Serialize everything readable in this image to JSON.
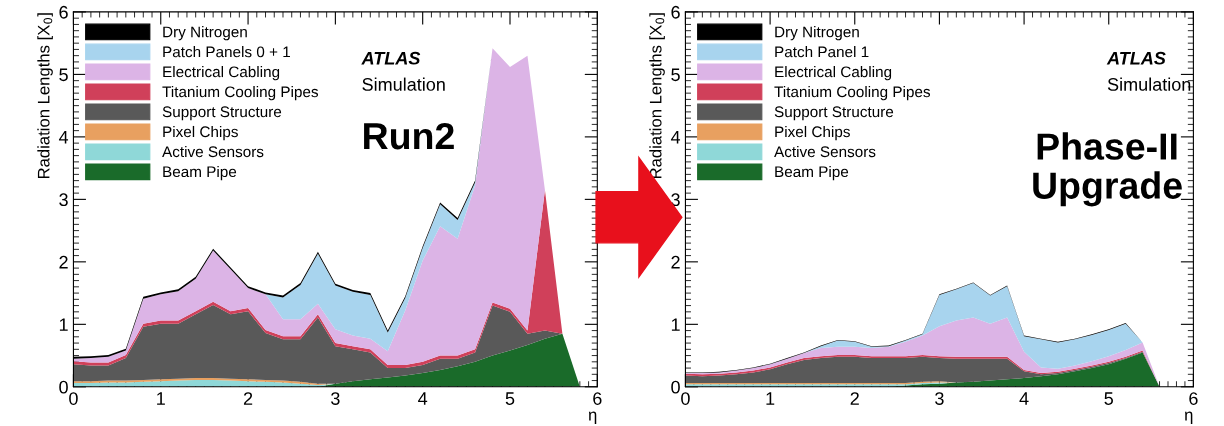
{
  "chart_data": [
    {
      "type": "area",
      "stacked": true,
      "xlabel": "η",
      "ylabel": "Radiation Lengths [X$_{0}$]",
      "xlim": [
        0,
        6
      ],
      "ylim": [
        0,
        6
      ],
      "xticks": [
        0,
        1,
        2,
        3,
        4,
        5,
        6
      ],
      "yticks": [
        0,
        1,
        2,
        3,
        4,
        5,
        6
      ],
      "legend": "top left",
      "grid": false,
      "annotations": [
        "ATLAS",
        "Simulation",
        "Run2"
      ],
      "x": [
        0,
        0.2,
        0.4,
        0.6,
        0.8,
        1.0,
        1.2,
        1.4,
        1.6,
        1.8,
        2.0,
        2.2,
        2.4,
        2.6,
        2.8,
        3.0,
        3.2,
        3.4,
        3.6,
        3.8,
        4.0,
        4.2,
        4.4,
        4.6,
        4.8,
        5.0,
        5.2,
        5.4,
        5.6,
        5.8
      ],
      "series": [
        {
          "name": "Beam Pipe",
          "color": "#1a6b2a",
          "values": [
            null,
            null,
            null,
            null,
            null,
            null,
            null,
            null,
            null,
            null,
            null,
            null,
            null,
            null,
            0,
            0.05,
            0.09,
            0.12,
            0.15,
            0.18,
            0.22,
            0.27,
            0.33,
            0.4,
            0.5,
            0.58,
            0.67,
            0.77,
            0.85,
            0
          ]
        },
        {
          "name": "Active Sensors",
          "color": "#8fd8d8",
          "values": [
            0.06,
            0.06,
            0.07,
            0.07,
            0.08,
            0.09,
            0.1,
            0.11,
            0.11,
            0.1,
            0.09,
            0.08,
            0.07,
            0.05,
            0.03,
            0,
            null,
            null,
            null,
            null,
            null,
            null,
            null,
            null,
            null,
            null,
            null,
            null,
            null,
            null
          ]
        },
        {
          "name": "Pixel Chips",
          "color": "#e8a060",
          "values": [
            0.03,
            0.03,
            0.03,
            0.03,
            0.03,
            0.03,
            0.03,
            0.03,
            0.03,
            0.03,
            0.03,
            0.03,
            0.03,
            0.03,
            0.02,
            0,
            null,
            null,
            null,
            null,
            null,
            null,
            null,
            null,
            null,
            null,
            null,
            null,
            null,
            null
          ]
        },
        {
          "name": "Support Structure",
          "color": "#595959",
          "values": [
            0.27,
            0.25,
            0.24,
            0.36,
            0.85,
            0.89,
            0.88,
            1.02,
            1.17,
            1.03,
            1.09,
            0.75,
            0.66,
            0.68,
            1.06,
            0.6,
            0.51,
            0.43,
            0.15,
            0.12,
            0.13,
            0.18,
            0.12,
            0.15,
            0.8,
            0.62,
            0.18,
            0.13,
            0,
            null
          ]
        },
        {
          "name": "Titanium Cooling Pipes",
          "color": "#d0405a",
          "values": [
            0.05,
            0.05,
            0.05,
            0.05,
            0.05,
            0.05,
            0.05,
            0.05,
            0.05,
            0.05,
            0.05,
            0.05,
            0.05,
            0.05,
            0.05,
            0.05,
            0.05,
            0.05,
            0.05,
            0.05,
            0.05,
            0.05,
            0.05,
            0.05,
            0.05,
            0.05,
            0.05,
            2.25,
            0,
            null
          ]
        },
        {
          "name": "Electrical Cabling",
          "color": "#dcb4e6",
          "values": [
            0.04,
            0.07,
            0.09,
            0.07,
            0.4,
            0.42,
            0.47,
            0.52,
            0.82,
            0.67,
            0.32,
            0.57,
            0.27,
            0.27,
            0.17,
            0.22,
            0.17,
            0.17,
            0.22,
            0.87,
            1.62,
            2.07,
            1.87,
            2.62,
            4.07,
            3.87,
            4.4,
            0,
            null,
            null
          ]
        },
        {
          "name": "Patch Panels 0 + 1",
          "color": "#a8d4ee",
          "values": [
            null,
            null,
            null,
            null,
            null,
            null,
            null,
            null,
            null,
            null,
            null,
            0,
            0.35,
            0.55,
            0.8,
            0.7,
            0.7,
            0.7,
            0.3,
            0.2,
            0.2,
            0.35,
            0.3,
            0.05,
            0,
            null,
            null,
            null,
            null,
            null
          ]
        },
        {
          "name": "Dry Nitrogen",
          "color": "#000000",
          "values": [
            0.03,
            0.03,
            0.03,
            0.03,
            0.03,
            0.03,
            0.03,
            0.03,
            0.03,
            0.03,
            0.03,
            0.03,
            0.03,
            0.03,
            0.03,
            0.03,
            0.03,
            0.03,
            0.03,
            0.03,
            0.03,
            0.03,
            0.03,
            0.03,
            0,
            null,
            null,
            null,
            null,
            null
          ]
        }
      ]
    },
    {
      "type": "area",
      "stacked": true,
      "xlabel": "η",
      "ylabel": "Radiation Lengths [X$_{0}$]",
      "xlim": [
        0,
        6
      ],
      "ylim": [
        0,
        6
      ],
      "xticks": [
        0,
        1,
        2,
        3,
        4,
        5,
        6
      ],
      "yticks": [
        0,
        1,
        2,
        3,
        4,
        5,
        6
      ],
      "legend": "top left",
      "grid": false,
      "annotations": [
        "ATLAS",
        "Simulation",
        "Phase-II\nUpgrade"
      ],
      "x": [
        0,
        0.2,
        0.4,
        0.6,
        0.8,
        1.0,
        1.2,
        1.4,
        1.6,
        1.8,
        2.0,
        2.2,
        2.4,
        2.6,
        2.8,
        3.0,
        3.2,
        3.4,
        3.6,
        3.8,
        4.0,
        4.2,
        4.4,
        4.6,
        4.8,
        5.0,
        5.2,
        5.4,
        5.6
      ],
      "series": [
        {
          "name": "Beam Pipe",
          "color": "#1a6b2a",
          "values": [
            null,
            null,
            null,
            null,
            null,
            null,
            null,
            null,
            null,
            null,
            null,
            null,
            0,
            0.02,
            0.04,
            0.05,
            0.07,
            0.08,
            0.1,
            0.12,
            0.14,
            0.17,
            0.2,
            0.25,
            0.3,
            0.36,
            0.45,
            0.55,
            0
          ]
        },
        {
          "name": "Active Sensors",
          "color": "#8fd8d8",
          "values": [
            0.04,
            0.04,
            0.04,
            0.04,
            0.04,
            0.04,
            0.04,
            0.04,
            0.04,
            0.04,
            0.04,
            0.04,
            0.04,
            0.02,
            0.02,
            0.02,
            0,
            null,
            null,
            null,
            null,
            null,
            null,
            null,
            null,
            null,
            null,
            null,
            null
          ]
        },
        {
          "name": "Pixel Chips",
          "color": "#e8a060",
          "values": [
            0.02,
            0.02,
            0.02,
            0.02,
            0.02,
            0.02,
            0.02,
            0.02,
            0.02,
            0.02,
            0.02,
            0.02,
            0.02,
            0.02,
            0.02,
            0.02,
            0,
            null,
            null,
            null,
            null,
            null,
            null,
            null,
            null,
            null,
            null,
            null,
            null
          ]
        },
        {
          "name": "Support Structure",
          "color": "#595959",
          "values": [
            0.12,
            0.11,
            0.12,
            0.14,
            0.17,
            0.22,
            0.3,
            0.37,
            0.4,
            0.42,
            0.42,
            0.4,
            0.4,
            0.4,
            0.4,
            0.37,
            0.38,
            0.37,
            0.35,
            0.33,
            0.11,
            0.03,
            0.02,
            0.02,
            0.02,
            0.02,
            0.01,
            0.01,
            0
          ]
        },
        {
          "name": "Titanium Cooling Pipes",
          "color": "#d0405a",
          "values": [
            0.03,
            0.03,
            0.03,
            0.03,
            0.03,
            0.03,
            0.03,
            0.03,
            0.03,
            0.03,
            0.03,
            0.03,
            0.03,
            0.03,
            0.03,
            0.03,
            0.03,
            0.03,
            0.03,
            0.03,
            0.02,
            0.02,
            0.02,
            0.02,
            0.02,
            0.02,
            0.02,
            0.02,
            0
          ]
        },
        {
          "name": "Electrical Cabling",
          "color": "#dcb4e6",
          "values": [
            0.01,
            0.02,
            0.02,
            0.03,
            0.04,
            0.05,
            0.06,
            0.08,
            0.13,
            0.13,
            0.13,
            0.13,
            0.15,
            0.23,
            0.31,
            0.48,
            0.58,
            0.63,
            0.53,
            0.63,
            0.29,
            0.09,
            0.05,
            0.05,
            0.07,
            0.09,
            0.11,
            0.13,
            0
          ]
        },
        {
          "name": "Patch Panel 1",
          "color": "#a8d4ee",
          "values": [
            null,
            null,
            null,
            null,
            null,
            null,
            null,
            0,
            0.03,
            0.1,
            0.08,
            0.02,
            0.01,
            0.02,
            0.02,
            0.5,
            0.5,
            0.55,
            0.45,
            0.5,
            0.25,
            0.45,
            0.42,
            0.42,
            0.42,
            0.42,
            0.42,
            0,
            null
          ]
        },
        {
          "name": "Dry Nitrogen",
          "color": "#000000",
          "values": [
            0.01,
            0.01,
            0.01,
            0.01,
            0.01,
            0.01,
            0.01,
            0.01,
            0.01,
            0.01,
            0.01,
            0.01,
            0.01,
            0.01,
            0.01,
            0.01,
            0.01,
            0.01,
            0.01,
            0.01,
            0.01,
            0.01,
            0.01,
            0.01,
            0.01,
            0.01,
            0.01,
            0,
            null
          ]
        }
      ]
    }
  ]
}
